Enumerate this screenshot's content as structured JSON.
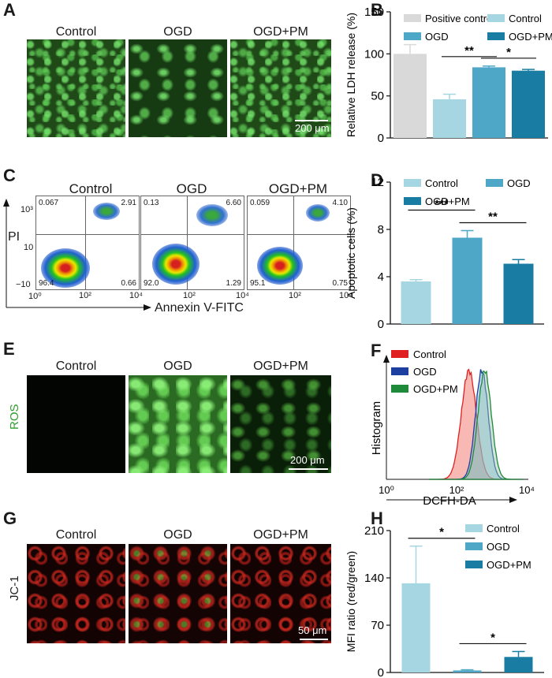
{
  "panels": {
    "A": {
      "label": "A",
      "titles": [
        "Control",
        "OGD",
        "OGD+PM"
      ],
      "scale": "200 μm"
    },
    "B": {
      "label": "B"
    },
    "C": {
      "label": "C",
      "titles": [
        "Control",
        "OGD",
        "OGD+PM"
      ],
      "quadrants": [
        {
          "ul": "0.067",
          "ur": "2.91",
          "ll": "96.4",
          "lr": "0.66"
        },
        {
          "ul": "0.13",
          "ur": "6.60",
          "ll": "92.0",
          "lr": "1.29"
        },
        {
          "ul": "0.059",
          "ur": "4.10",
          "ll": "95.1",
          "lr": "0.75"
        }
      ],
      "yaxis": "PI",
      "xaxis": "Annexin V-FITC",
      "yticks": [
        "10³",
        "10",
        "−10"
      ],
      "xticks": [
        "10⁰",
        "10²",
        "10⁴"
      ]
    },
    "D": {
      "label": "D"
    },
    "E": {
      "label": "E",
      "titles": [
        "Control",
        "OGD",
        "OGD+PM"
      ],
      "side": "ROS",
      "scale": "200 μm"
    },
    "F": {
      "label": "F"
    },
    "G": {
      "label": "G",
      "titles": [
        "Control",
        "OGD",
        "OGD+PM"
      ],
      "side": "JC-1",
      "scale": "50 μm"
    },
    "H": {
      "label": "H"
    }
  },
  "colors": {
    "positive": "#d9d9d9",
    "control": "#a6d6e2",
    "ogd": "#4ea7c7",
    "ogdpm": "#197ca2",
    "red": "#e02020",
    "blue": "#1c3fa0",
    "green": "#1e8a3a"
  },
  "chart_data": [
    {
      "id": "B",
      "type": "bar",
      "title": "",
      "ylabel": "Relative LDH release (%)",
      "xlabel": "",
      "ylim": [
        0,
        150
      ],
      "yticks": [
        0,
        50,
        100,
        150
      ],
      "categories": [
        "Positive control",
        "Control",
        "OGD",
        "OGD+PM"
      ],
      "values": [
        100,
        46,
        84,
        80
      ],
      "errors": [
        11,
        6,
        1.5,
        1.5
      ],
      "legend": [
        "Positive control",
        "Control",
        "OGD",
        "OGD+PM"
      ],
      "significance": [
        {
          "from": 1,
          "to": 2,
          "label": "**"
        },
        {
          "from": 2,
          "to": 3,
          "label": "*"
        }
      ]
    },
    {
      "id": "D",
      "type": "bar",
      "title": "",
      "ylabel": "Apoptotic cells (%)",
      "xlabel": "",
      "ylim": [
        0,
        12
      ],
      "yticks": [
        0,
        4,
        8,
        12
      ],
      "categories": [
        "Control",
        "OGD",
        "OGD+PM"
      ],
      "values": [
        3.6,
        7.3,
        5.1
      ],
      "errors": [
        0.15,
        0.6,
        0.35
      ],
      "legend": [
        "Control",
        "OGD",
        "OGD+PM"
      ],
      "significance": [
        {
          "from": 0,
          "to": 1,
          "label": "***"
        },
        {
          "from": 1,
          "to": 2,
          "label": "**"
        }
      ]
    },
    {
      "id": "F",
      "type": "area",
      "title": "",
      "ylabel": "Histogram",
      "xlabel": "DCFH-DA",
      "xscale": "log",
      "xlim": [
        1,
        10000
      ],
      "xticks": [
        "10⁰",
        "10²",
        "10⁴"
      ],
      "series": [
        {
          "name": "Control",
          "peak_log": 2.35,
          "width_log": 0.45
        },
        {
          "name": "OGD",
          "peak_log": 2.72,
          "width_log": 0.38
        },
        {
          "name": "OGD+PM",
          "peak_log": 2.8,
          "width_log": 0.4
        }
      ]
    },
    {
      "id": "H",
      "type": "bar",
      "title": "",
      "ylabel": "MFI ratio (red/green)",
      "xlabel": "",
      "ylim": [
        0,
        210
      ],
      "yticks": [
        0,
        70,
        140,
        210
      ],
      "categories": [
        "Control",
        "OGD",
        "OGD+PM"
      ],
      "values": [
        132,
        3,
        23
      ],
      "errors": [
        55,
        1,
        8
      ],
      "legend": [
        "Control",
        "OGD",
        "OGD+PM"
      ],
      "significance": [
        {
          "from": 0,
          "to": 1,
          "label": "*"
        },
        {
          "from": 1,
          "to": 2,
          "label": "*"
        }
      ]
    }
  ]
}
